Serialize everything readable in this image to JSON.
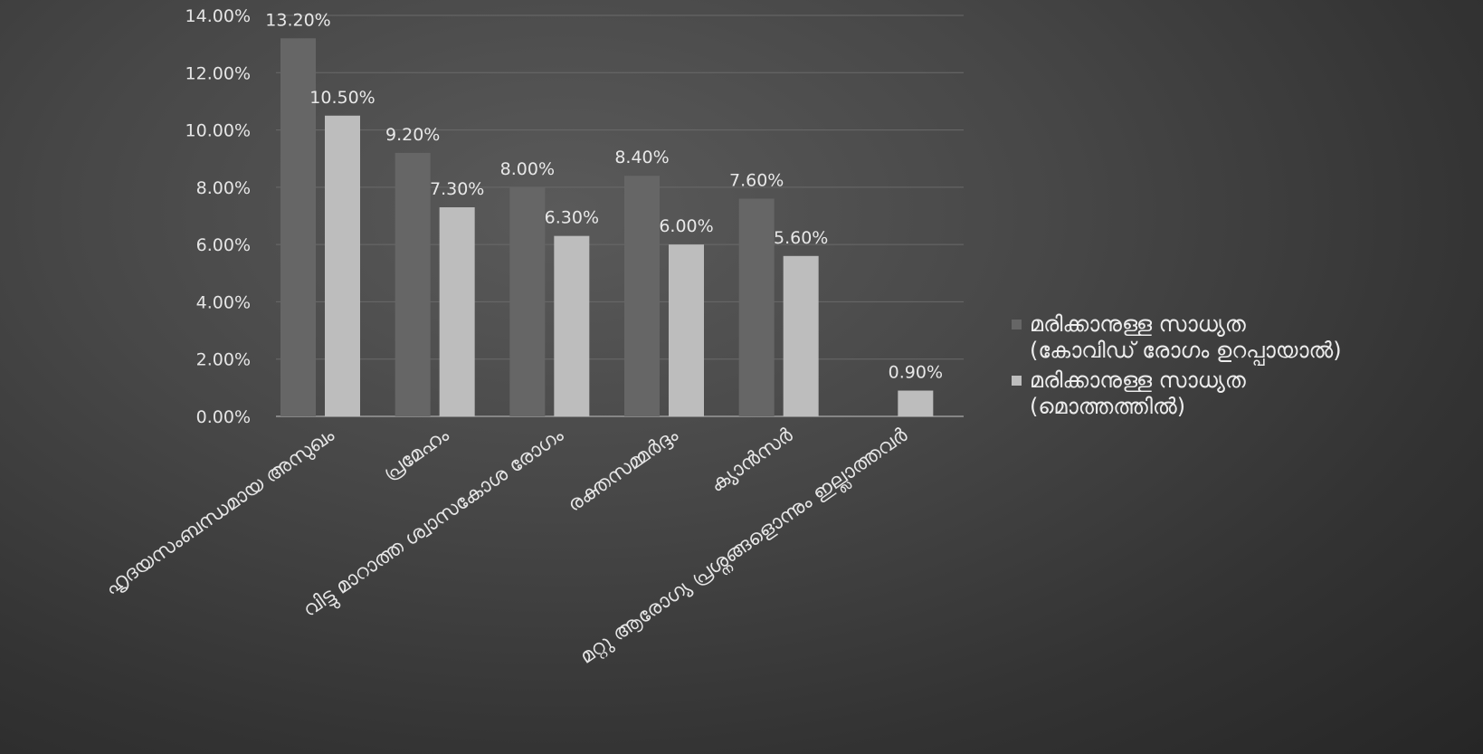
{
  "chart_data": {
    "type": "bar",
    "title": "",
    "xlabel": "",
    "ylabel": "",
    "ylim": [
      0,
      14
    ],
    "y_tick_values": [
      0,
      2,
      4,
      6,
      8,
      10,
      12,
      14
    ],
    "y_tick_labels": [
      "0.00%",
      "2.00%",
      "4.00%",
      "6.00%",
      "8.00%",
      "10.00%",
      "12.00%",
      "14.00%"
    ],
    "grid": true,
    "legend_position": "right",
    "categories": [
      "ഹൃദയസംബന്ധമായ അസുഖം",
      "പ്രമേഹം",
      "വിട്ടു മാറാത്ത ശ്വാസകോശ രോഗം",
      "രക്തസമ്മർദ്ദം",
      "ക്യാൻസർ",
      "മറ്റു ആരോഗ്യ പ്രശ്നങ്ങളൊന്നും ഇല്ലാത്തവർ"
    ],
    "series": [
      {
        "name": "മരിക്കാനുള്ള സാധ്യത (കോവിഡ് രോഗം ഉറപ്പായാൽ)",
        "legend_lines": [
          "മരിക്കാനുള്ള സാധ്യത",
          "(കോവിഡ് രോഗം ഉറപ്പായാൽ)"
        ],
        "color": "#666666",
        "values": [
          13.2,
          9.2,
          8.0,
          8.4,
          7.6,
          null
        ],
        "labels": [
          "13.20%",
          "9.20%",
          "8.00%",
          "8.40%",
          "7.60%",
          ""
        ]
      },
      {
        "name": "മരിക്കാനുള്ള സാധ്യത (മൊത്തത്തിൽ)",
        "legend_lines": [
          "മരിക്കാനുള്ള സാധ്യത",
          "(മൊത്തത്തിൽ)"
        ],
        "color": "#bdbdbd",
        "values": [
          10.5,
          7.3,
          6.3,
          6.0,
          5.6,
          0.9
        ],
        "labels": [
          "10.50%",
          "7.30%",
          "6.30%",
          "6.00%",
          "5.60%",
          "0.90%"
        ]
      }
    ]
  }
}
